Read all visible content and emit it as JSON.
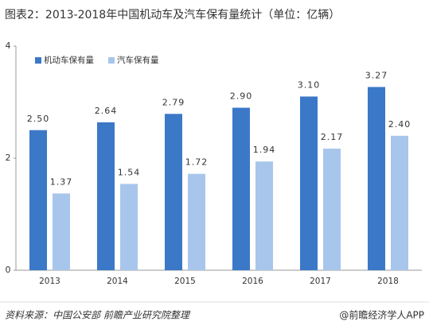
{
  "chart_data": {
    "type": "bar",
    "title": "图表2：2013-2018年中国机动车及汽车保有量统计（单位：亿辆）",
    "categories": [
      "2013",
      "2014",
      "2015",
      "2016",
      "2017",
      "2018"
    ],
    "series": [
      {
        "name": "机动车保有量",
        "color": "#3b78c8",
        "values": [
          2.5,
          2.64,
          2.79,
          2.9,
          3.1,
          3.27
        ],
        "value_labels": [
          "2.50",
          "2.64",
          "2.79",
          "2.90",
          "3.10",
          "3.27"
        ]
      },
      {
        "name": "汽车保有量",
        "color": "#a8c6ec",
        "values": [
          1.37,
          1.54,
          1.72,
          1.94,
          2.17,
          2.4
        ],
        "value_labels": [
          "1.37",
          "1.54",
          "1.72",
          "1.94",
          "2.17",
          "2.40"
        ]
      }
    ],
    "ylim": [
      0,
      4
    ],
    "yticks": [
      0,
      2,
      4
    ],
    "grid": false,
    "legend": "upper left"
  },
  "footer": {
    "source": "资料来源：中国公安部 前瞻产业研究院整理",
    "credit": "@前瞻经济学人APP"
  }
}
